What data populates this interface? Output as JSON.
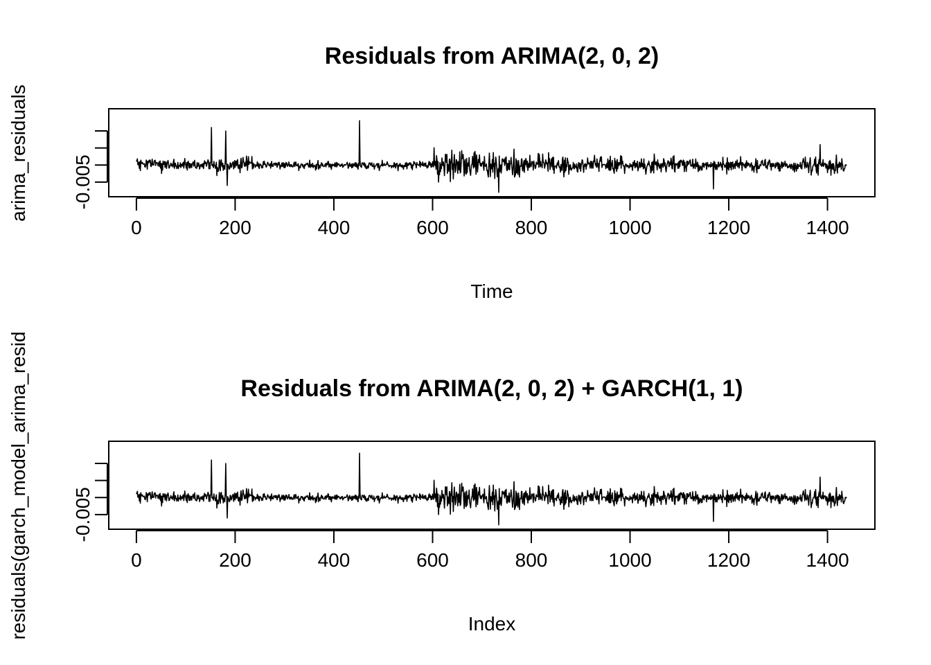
{
  "chart_data": [
    {
      "type": "line",
      "title": "Residuals from ARIMA(2, 0, 2)",
      "xlabel": "Time",
      "ylabel": "arima_residuals",
      "xlim": [
        -56,
        1496
      ],
      "ylim": [
        -0.0093,
        0.0165
      ],
      "x_ticks": [
        "0",
        "200",
        "400",
        "600",
        "800",
        "1000",
        "1200",
        "1400"
      ],
      "y_ticks": [
        -0.005,
        0.0,
        0.005,
        0.01
      ],
      "y_tick_labels_shown": [
        "-0.005"
      ],
      "n_points": 1440,
      "series": [
        {
          "values_description": "residual series, approximate values at key points",
          "points": [
            [
              0,
              0.001
            ],
            [
              152,
              0.011
            ],
            [
              181,
              0.01
            ],
            [
              184,
              -0.006
            ],
            [
              452,
              0.013
            ],
            [
              612,
              -0.005
            ],
            [
              734,
              -0.008
            ],
            [
              1169,
              -0.007
            ],
            [
              1385,
              0.006
            ],
            [
              1440,
              -0.004
            ]
          ]
        }
      ]
    },
    {
      "type": "line",
      "title": "Residuals from ARIMA(2, 0, 2) + GARCH(1, 1)",
      "xlabel": "Index",
      "ylabel": "residuals(garch_model_arima_resid",
      "xlim": [
        -56,
        1496
      ],
      "ylim": [
        -0.0093,
        0.0165
      ],
      "x_ticks": [
        "0",
        "200",
        "400",
        "600",
        "800",
        "1000",
        "1200",
        "1400"
      ],
      "y_ticks": [
        -0.005,
        0.0,
        0.005,
        0.01
      ],
      "y_tick_labels_shown": [
        "-0.005"
      ],
      "n_points": 1440,
      "series": [
        {
          "values_description": "residual series, approximate values at key points",
          "points": [
            [
              0,
              0.001
            ],
            [
              152,
              0.011
            ],
            [
              181,
              0.01
            ],
            [
              184,
              -0.006
            ],
            [
              452,
              0.013
            ],
            [
              612,
              -0.005
            ],
            [
              734,
              -0.008
            ],
            [
              1169,
              -0.007
            ],
            [
              1385,
              0.006
            ],
            [
              1440,
              -0.004
            ]
          ]
        }
      ]
    }
  ]
}
